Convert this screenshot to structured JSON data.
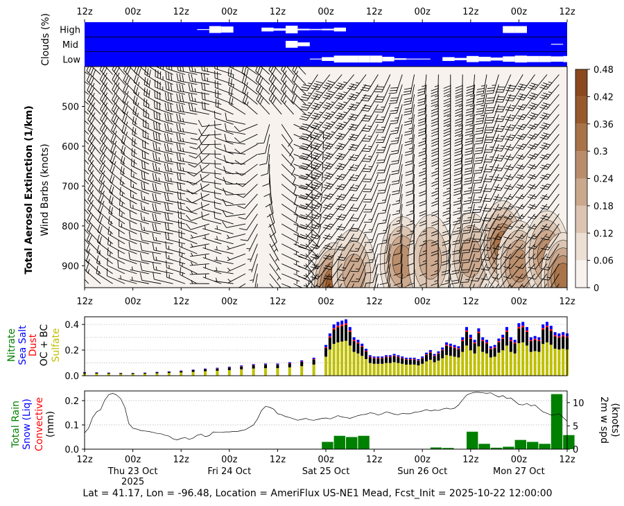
{
  "colors": {
    "cloud_bg": "#0000ff",
    "cloud_box": "#ffffff",
    "aerosol_levels": [
      "#f7f2ee",
      "#ecdfd4",
      "#dbc4b1",
      "#caa88d",
      "#b98d6b",
      "#a87349",
      "#975a2c",
      "#8a4a1e"
    ],
    "sulfate": "#bfbf00",
    "oc_bc": "#000000",
    "dust": "#ff0000",
    "sea_salt": "#0000ff",
    "nitrate": "#008000",
    "rain": "#008000",
    "wind_line": "#000000"
  },
  "time_ticks": [
    "12z",
    "00z",
    "12z",
    "00z",
    "12z",
    "00z",
    "12z",
    "00z",
    "12z",
    "00z",
    "12z"
  ],
  "date_labels": [
    {
      "tick": 1,
      "lines": [
        "Thu 23 Oct",
        "2025"
      ]
    },
    {
      "tick": 3,
      "lines": [
        "Fri 24 Oct"
      ]
    },
    {
      "tick": 5,
      "lines": [
        "Sat 25 Oct"
      ]
    },
    {
      "tick": 7,
      "lines": [
        "Sun 26 Oct"
      ]
    },
    {
      "tick": 9,
      "lines": [
        "Mon 27 Oct"
      ]
    }
  ],
  "footer": "Lat = 41.17, Lon = -96.48, Location = AmeriFlux US-NE1 Mead, Fcst_Init = 2025-10-22 12:00:00",
  "chart_data": [
    {
      "type": "heatmap",
      "panel": "clouds",
      "ylabel": "Clouds (%)",
      "rows": [
        "High",
        "Mid",
        "Low"
      ],
      "x_range_hours": [
        0,
        120
      ],
      "boxes": {
        "High": [
          [
            28,
            31,
            0.1
          ],
          [
            31,
            34,
            0.9
          ],
          [
            34,
            37,
            0.8
          ],
          [
            44,
            47,
            0.5
          ],
          [
            47,
            50,
            0.3
          ],
          [
            50,
            53,
            1.0
          ],
          [
            53,
            56,
            0.2
          ],
          [
            56,
            59,
            0.15
          ],
          [
            59,
            62,
            0.2
          ],
          [
            62,
            65,
            0.5
          ],
          [
            104,
            107,
            0.9
          ],
          [
            107,
            110,
            0.9
          ]
        ],
        "Mid": [
          [
            50,
            53,
            0.9
          ],
          [
            53,
            56,
            0.5
          ],
          [
            116,
            119,
            0.1
          ]
        ],
        "Low": [
          [
            56,
            59,
            0.1
          ],
          [
            59,
            62,
            0.5
          ],
          [
            62,
            65,
            0.9
          ],
          [
            65,
            68,
            0.9
          ],
          [
            68,
            71,
            0.9
          ],
          [
            71,
            74,
            0.9
          ],
          [
            74,
            77,
            0.6
          ],
          [
            77,
            80,
            0.2
          ],
          [
            80,
            83,
            0.1
          ],
          [
            83,
            86,
            0.05
          ],
          [
            89,
            92,
            0.5
          ],
          [
            92,
            95,
            0.3
          ],
          [
            95,
            98,
            0.8
          ],
          [
            98,
            101,
            0.6
          ],
          [
            101,
            104,
            0.4
          ],
          [
            104,
            107,
            0.7
          ],
          [
            107,
            110,
            0.9
          ],
          [
            110,
            113,
            0.8
          ],
          [
            113,
            116,
            0.8
          ],
          [
            116,
            119,
            0.7
          ],
          [
            119,
            122,
            0.8
          ]
        ]
      }
    },
    {
      "type": "heatmap",
      "panel": "aerosol",
      "title": "Total Aerosol Extinction (1/km)",
      "ylabel": "Wind Barbs (knots)",
      "y_ticks": [
        500,
        600,
        700,
        800,
        900
      ],
      "y_range_hpa": [
        400,
        955
      ],
      "x_range_hours": [
        0,
        120
      ],
      "colorbar_ticks": [
        "0",
        "0.06",
        "0.12",
        "0.18",
        "0.24",
        "0.3",
        "0.36",
        "0.42",
        "0.48"
      ],
      "colorbar_range": [
        0,
        0.48
      ],
      "plumes": [
        {
          "t": 62,
          "p": 955,
          "peak": 0.4
        },
        {
          "t": 67,
          "p": 920,
          "peak": 0.22
        },
        {
          "t": 79,
          "p": 890,
          "peak": 0.24
        },
        {
          "t": 86,
          "p": 885,
          "peak": 0.2
        },
        {
          "t": 96,
          "p": 880,
          "peak": 0.22
        },
        {
          "t": 104,
          "p": 850,
          "peak": 0.3
        },
        {
          "t": 108,
          "p": 900,
          "peak": 0.28
        },
        {
          "t": 115,
          "p": 875,
          "peak": 0.26
        },
        {
          "t": 119,
          "p": 930,
          "peak": 0.34
        }
      ]
    },
    {
      "type": "bar",
      "panel": "aerosol_species",
      "ylabels": [
        "Nitrate",
        "Sea Salt",
        "Dust",
        "OC + BC",
        "Sulfate"
      ],
      "y_ticks": [
        "0.0",
        "0.2",
        "0.4"
      ],
      "ylim": [
        0,
        0.46
      ],
      "x_hours": [
        0,
        3,
        6,
        9,
        12,
        15,
        18,
        21,
        24,
        27,
        30,
        33,
        36,
        39,
        42,
        45,
        48,
        51,
        54,
        57,
        60,
        61,
        62,
        63,
        64,
        65,
        66,
        67,
        68,
        69,
        70,
        71,
        72,
        73,
        74,
        75,
        76,
        77,
        78,
        79,
        80,
        81,
        82,
        83,
        84,
        85,
        86,
        87,
        88,
        89,
        90,
        91,
        92,
        93,
        94,
        95,
        96,
        97,
        98,
        99,
        100,
        101,
        102,
        103,
        104,
        105,
        106,
        107,
        108,
        109,
        110,
        111,
        112,
        113,
        114,
        115,
        116,
        117,
        118,
        119,
        120
      ],
      "total": [
        0.028,
        0.026,
        0.024,
        0.022,
        0.022,
        0.024,
        0.03,
        0.034,
        0.04,
        0.048,
        0.056,
        0.062,
        0.07,
        0.08,
        0.09,
        0.095,
        0.095,
        0.105,
        0.12,
        0.14,
        0.24,
        0.33,
        0.4,
        0.42,
        0.43,
        0.44,
        0.38,
        0.3,
        0.28,
        0.25,
        0.21,
        0.16,
        0.15,
        0.15,
        0.15,
        0.16,
        0.16,
        0.17,
        0.16,
        0.15,
        0.14,
        0.14,
        0.14,
        0.13,
        0.15,
        0.18,
        0.2,
        0.17,
        0.19,
        0.22,
        0.26,
        0.25,
        0.24,
        0.23,
        0.3,
        0.38,
        0.32,
        0.28,
        0.37,
        0.3,
        0.28,
        0.23,
        0.24,
        0.29,
        0.32,
        0.38,
        0.3,
        0.28,
        0.41,
        0.42,
        0.38,
        0.3,
        0.31,
        0.3,
        0.4,
        0.42,
        0.39,
        0.34,
        0.33,
        0.34,
        0.33
      ],
      "sulfate_frac": 0.62
    },
    {
      "type": "bar",
      "panel": "precip",
      "ylabels": [
        "Total Rain",
        "Snow (Liq)",
        "Convective",
        "(mm)"
      ],
      "y2label": [
        "2m w spd",
        "(knots)"
      ],
      "y_ticks": [
        "0.0",
        "0.1",
        "0.2"
      ],
      "y2_ticks": [
        "0",
        "5",
        "10"
      ],
      "ylim": [
        0,
        0.24
      ],
      "y2lim": [
        0,
        12.5
      ],
      "rain_bars": [
        [
          59,
          0.03
        ],
        [
          62,
          0.055
        ],
        [
          65,
          0.05
        ],
        [
          68,
          0.055
        ],
        [
          86,
          0.007
        ],
        [
          89,
          0.005
        ],
        [
          95,
          0.072
        ],
        [
          98,
          0.022
        ],
        [
          101,
          0.006
        ],
        [
          104,
          0.01
        ],
        [
          107,
          0.038
        ],
        [
          110,
          0.03
        ],
        [
          113,
          0.022
        ],
        [
          116,
          0.227
        ],
        [
          119,
          0.058
        ]
      ],
      "wind_speed": [
        [
          0,
          3.5
        ],
        [
          1,
          4.5
        ],
        [
          2,
          6.8
        ],
        [
          3,
          8.0
        ],
        [
          4,
          8.5
        ],
        [
          5,
          10.5
        ],
        [
          6,
          11.7
        ],
        [
          7,
          12.0
        ],
        [
          8,
          11.6
        ],
        [
          9,
          10.8
        ],
        [
          10,
          9.0
        ],
        [
          11,
          5.5
        ],
        [
          12,
          4.5
        ],
        [
          13,
          4.3
        ],
        [
          14,
          4.0
        ],
        [
          15,
          3.9
        ],
        [
          16,
          3.8
        ],
        [
          17,
          3.6
        ],
        [
          18,
          3.4
        ],
        [
          19,
          3.3
        ],
        [
          20,
          3.0
        ],
        [
          21,
          2.8
        ],
        [
          22,
          2.2
        ],
        [
          23,
          2.0
        ],
        [
          24,
          2.3
        ],
        [
          25,
          2.5
        ],
        [
          26,
          2.1
        ],
        [
          27,
          2.4
        ],
        [
          28,
          3.0
        ],
        [
          29,
          3.2
        ],
        [
          30,
          2.7
        ],
        [
          31,
          2.9
        ],
        [
          32,
          3.7
        ],
        [
          33,
          3.6
        ],
        [
          34,
          3.6
        ],
        [
          35,
          3.7
        ],
        [
          36,
          3.7
        ],
        [
          37,
          3.8
        ],
        [
          38,
          3.8
        ],
        [
          39,
          4.0
        ],
        [
          40,
          4.2
        ],
        [
          41,
          4.7
        ],
        [
          42,
          5.2
        ],
        [
          43,
          6.5
        ],
        [
          44,
          8.3
        ],
        [
          45,
          9.2
        ],
        [
          46,
          9.0
        ],
        [
          47,
          8.6
        ],
        [
          48,
          7.6
        ],
        [
          49,
          7.4
        ],
        [
          50,
          7.0
        ],
        [
          51,
          6.8
        ],
        [
          52,
          6.5
        ],
        [
          53,
          6.2
        ],
        [
          54,
          6.4
        ],
        [
          55,
          6.6
        ],
        [
          56,
          6.3
        ],
        [
          57,
          6.2
        ],
        [
          58,
          6.4
        ],
        [
          59,
          6.6
        ],
        [
          60,
          6.7
        ],
        [
          61,
          6.5
        ],
        [
          62,
          6.8
        ],
        [
          63,
          7.2
        ],
        [
          64,
          6.9
        ],
        [
          65,
          6.8
        ],
        [
          66,
          6.6
        ],
        [
          67,
          6.9
        ],
        [
          68,
          7.2
        ],
        [
          69,
          7.4
        ],
        [
          70,
          7.5
        ],
        [
          71,
          7.8
        ],
        [
          72,
          7.7
        ],
        [
          73,
          7.3
        ],
        [
          74,
          7.6
        ],
        [
          75,
          8.0
        ],
        [
          76,
          7.8
        ],
        [
          77,
          7.5
        ],
        [
          78,
          7.4
        ],
        [
          79,
          7.7
        ],
        [
          80,
          7.6
        ],
        [
          81,
          7.6
        ],
        [
          82,
          7.9
        ],
        [
          83,
          8.0
        ],
        [
          84,
          8.2
        ],
        [
          85,
          8.5
        ],
        [
          86,
          8.2
        ],
        [
          87,
          8.4
        ],
        [
          88,
          8.3
        ],
        [
          89,
          8.6
        ],
        [
          90,
          8.8
        ],
        [
          91,
          8.6
        ],
        [
          92,
          8.8
        ],
        [
          93,
          9.5
        ],
        [
          94,
          10.6
        ],
        [
          95,
          11.6
        ],
        [
          96,
          12.0
        ],
        [
          97,
          12.2
        ],
        [
          98,
          12.2
        ],
        [
          99,
          12.1
        ],
        [
          100,
          12.0
        ],
        [
          101,
          12.1
        ],
        [
          102,
          11.6
        ],
        [
          103,
          11.2
        ],
        [
          104,
          11.5
        ],
        [
          105,
          10.9
        ],
        [
          106,
          11.0
        ],
        [
          107,
          10.3
        ],
        [
          108,
          9.6
        ],
        [
          109,
          9.5
        ],
        [
          110,
          9.8
        ],
        [
          111,
          9.3
        ],
        [
          112,
          9.5
        ],
        [
          113,
          8.7
        ],
        [
          114,
          8.0
        ],
        [
          115,
          7.7
        ],
        [
          116,
          7.3
        ],
        [
          117,
          7.4
        ],
        [
          118,
          7.6
        ],
        [
          119,
          6.8
        ],
        [
          120,
          6.0
        ]
      ]
    }
  ]
}
